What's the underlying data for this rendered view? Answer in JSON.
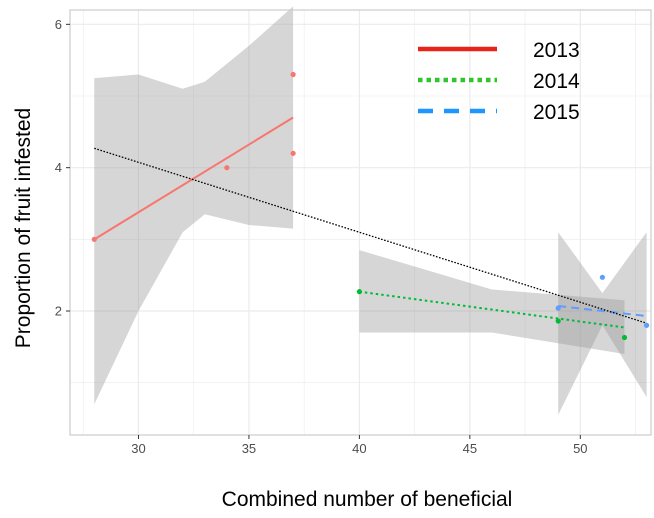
{
  "chart_data": {
    "type": "scatter",
    "xlabel": "Combined number of beneficial",
    "ylabel": "Proportion of fruit  infested",
    "xlim": [
      26.9,
      53.2
    ],
    "ylim": [
      0.27,
      6.2
    ],
    "xticks": [
      30,
      35,
      40,
      45,
      50
    ],
    "yticks": [
      2,
      4,
      6
    ],
    "grid": true,
    "legend_position": "top-right",
    "colors": {
      "2013": "#F8766D",
      "2014": "#00BA38",
      "2015": "#619CFF",
      "legend_2013": "#E8231A",
      "legend_2014": "#31C42C",
      "legend_2015": "#1E96FF",
      "band": "#999999",
      "overall": "#000000",
      "panel_border": "#cccccc",
      "grid": "#ebebeb"
    },
    "series": [
      {
        "name": "2013",
        "points": [
          [
            28,
            3.0
          ],
          [
            34,
            4.0
          ],
          [
            37,
            5.3
          ],
          [
            37,
            4.2
          ]
        ],
        "fit": {
          "x0": 28,
          "x1": 37,
          "y0": 3.0,
          "y1": 4.7
        },
        "band": {
          "x": [
            28,
            30,
            32,
            33,
            35,
            37
          ],
          "upper": [
            5.25,
            5.3,
            5.1,
            5.2,
            5.7,
            6.25
          ],
          "lower": [
            0.7,
            2.0,
            3.1,
            3.35,
            3.2,
            3.15
          ]
        }
      },
      {
        "name": "2014",
        "points": [
          [
            40,
            2.27
          ],
          [
            49,
            1.86
          ],
          [
            52,
            1.63
          ]
        ],
        "fit": {
          "x0": 40,
          "x1": 52,
          "y0": 2.27,
          "y1": 1.77
        },
        "band": {
          "x": [
            40,
            46,
            52
          ],
          "upper": [
            2.85,
            2.3,
            2.15
          ],
          "lower": [
            1.7,
            1.7,
            1.4
          ]
        }
      },
      {
        "name": "2015",
        "points": [
          [
            49,
            2.04
          ],
          [
            51,
            2.47
          ],
          [
            53,
            1.8
          ]
        ],
        "fit": {
          "x0": 49,
          "x1": 53,
          "y0": 2.07,
          "y1": 1.93
        },
        "band": {
          "x": [
            49,
            51,
            53
          ],
          "upper": [
            3.1,
            2.25,
            3.1
          ],
          "lower": [
            0.55,
            1.8,
            0.8
          ]
        }
      }
    ],
    "overall_fit": {
      "x0": 28,
      "x1": 53,
      "y0": 4.27,
      "y1": 1.83
    },
    "legend": [
      {
        "label": "2013",
        "key": "2013",
        "style": "solid"
      },
      {
        "label": "2014",
        "key": "2014",
        "style": "dotted"
      },
      {
        "label": "2015",
        "key": "2015",
        "style": "dashed"
      }
    ]
  }
}
